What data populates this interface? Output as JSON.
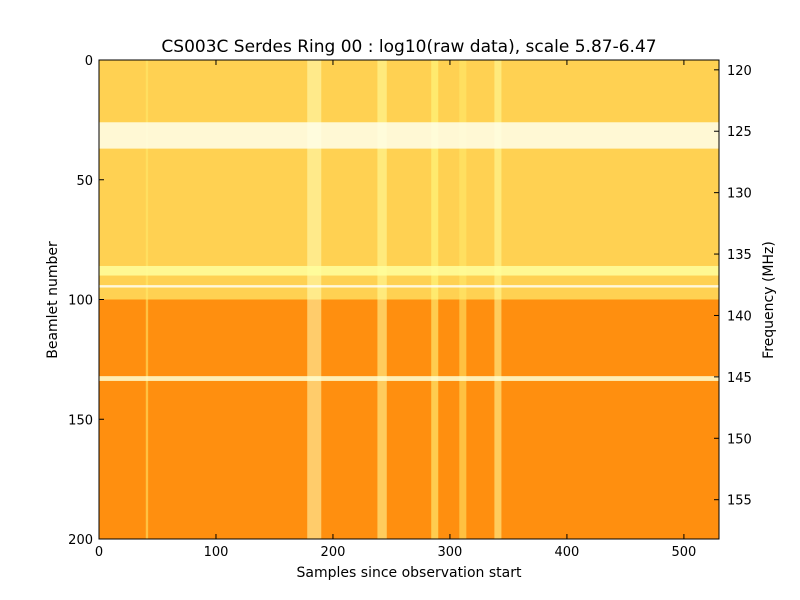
{
  "chart_data": {
    "type": "heatmap",
    "title": "CS003C Serdes Ring 00 : log10(raw data), scale 5.87-6.47",
    "xlabel": "Samples since observation start",
    "ylabel": "Beamlet number",
    "y2label": "Frequency (MHz)",
    "xlim": [
      0,
      530
    ],
    "ylim": [
      200,
      0
    ],
    "y2lim": [
      158.2,
      119.2
    ],
    "y_inverted": true,
    "x_ticks": [
      0,
      100,
      200,
      300,
      400,
      500
    ],
    "y_ticks": [
      0,
      50,
      100,
      150,
      200
    ],
    "y2_ticks": [
      120,
      125,
      130,
      135,
      140,
      145,
      150,
      155
    ],
    "value_range": [
      5.87,
      6.47
    ],
    "colormap": "afmhot",
    "grid": false,
    "legend": "none",
    "bright_beamlet_bands": [
      {
        "from": 26,
        "to": 37,
        "value": 6.45
      },
      {
        "from": 86,
        "to": 90,
        "value": 6.3
      },
      {
        "from": 94,
        "to": 95,
        "value": 6.47
      },
      {
        "from": 132,
        "to": 134,
        "value": 6.4
      }
    ],
    "bright_sample_columns": [
      {
        "from": 40,
        "to": 42,
        "value": 6.2
      },
      {
        "from": 178,
        "to": 190,
        "value": 6.35
      },
      {
        "from": 238,
        "to": 246,
        "value": 6.3
      },
      {
        "from": 284,
        "to": 290,
        "value": 6.25
      },
      {
        "from": 308,
        "to": 314,
        "value": 6.2
      },
      {
        "from": 338,
        "to": 344,
        "value": 6.3
      }
    ],
    "regions": [
      {
        "beamlet_from": 0,
        "beamlet_to": 100,
        "mean_value": 6.15
      },
      {
        "beamlet_from": 100,
        "beamlet_to": 200,
        "mean_value": 6.02
      }
    ]
  }
}
